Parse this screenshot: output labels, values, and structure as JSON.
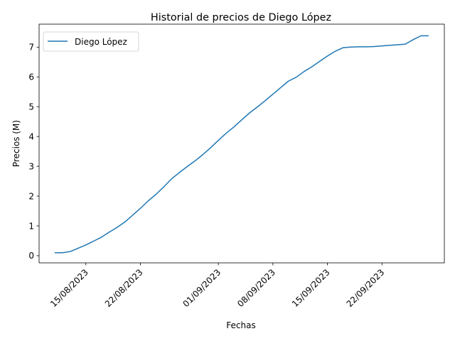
{
  "chart_data": {
    "type": "line",
    "title": "Historial de precios de Diego López",
    "xlabel": "Fechas",
    "ylabel": "Precios (M)",
    "x_ticks": [
      "15/08/2023",
      "22/08/2023",
      "01/09/2023",
      "08/09/2023",
      "15/09/2023",
      "22/09/2023"
    ],
    "y_ticks": [
      "0",
      "1",
      "2",
      "3",
      "4",
      "5",
      "6",
      "7"
    ],
    "ylim": [
      -0.24,
      7.77
    ],
    "xlim": [
      "2023-08-09",
      "2023-09-30"
    ],
    "grid": false,
    "legend": {
      "position": "top-left",
      "entries": [
        "Diego López"
      ]
    },
    "series": [
      {
        "name": "Diego López",
        "color": "#1f77b4",
        "x": [
          "2023-08-11",
          "2023-08-12",
          "2023-08-13",
          "2023-08-14",
          "2023-08-15",
          "2023-08-16",
          "2023-08-17",
          "2023-08-18",
          "2023-08-19",
          "2023-08-20",
          "2023-08-21",
          "2023-08-22",
          "2023-08-23",
          "2023-08-24",
          "2023-08-25",
          "2023-08-26",
          "2023-08-27",
          "2023-08-28",
          "2023-08-29",
          "2023-08-30",
          "2023-08-31",
          "2023-09-01",
          "2023-09-02",
          "2023-09-03",
          "2023-09-04",
          "2023-09-05",
          "2023-09-06",
          "2023-09-07",
          "2023-09-08",
          "2023-09-09",
          "2023-09-10",
          "2023-09-11",
          "2023-09-12",
          "2023-09-13",
          "2023-09-14",
          "2023-09-15",
          "2023-09-16",
          "2023-09-17",
          "2023-09-18",
          "2023-09-19",
          "2023-09-20",
          "2023-09-21",
          "2023-09-22",
          "2023-09-23",
          "2023-09-24",
          "2023-09-25",
          "2023-09-26",
          "2023-09-27",
          "2023-09-28"
        ],
        "values": [
          0.1,
          0.1,
          0.14,
          0.25,
          0.36,
          0.49,
          0.62,
          0.79,
          0.95,
          1.13,
          1.36,
          1.59,
          1.84,
          2.06,
          2.31,
          2.58,
          2.79,
          2.99,
          3.18,
          3.39,
          3.62,
          3.87,
          4.11,
          4.32,
          4.56,
          4.79,
          4.99,
          5.2,
          5.42,
          5.64,
          5.86,
          5.99,
          6.18,
          6.34,
          6.52,
          6.7,
          6.86,
          6.98,
          7.0,
          7.01,
          7.01,
          7.02,
          7.04,
          7.06,
          7.08,
          7.1,
          7.25,
          7.38,
          7.38
        ]
      }
    ]
  }
}
